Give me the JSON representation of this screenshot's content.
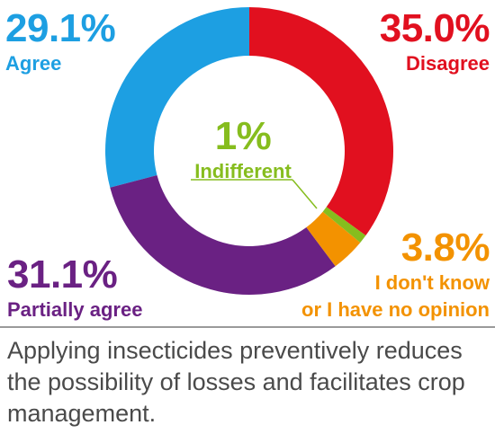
{
  "chart_data": {
    "type": "donut",
    "categories": [
      "Disagree",
      "Indifferent",
      "I don't know\nor I have no opinion",
      "Partially agree",
      "Agree"
    ],
    "values": [
      35.0,
      1,
      3.8,
      31.1,
      29.1
    ],
    "value_labels": [
      "35.0%",
      "1%",
      "3.8%",
      "31.1%",
      "29.1%"
    ],
    "colors": [
      "#e1101f",
      "#86bd1e",
      "#f39200",
      "#6a2183",
      "#1d9fe2"
    ],
    "caption": "Applying insecticides preventively reduces the possibility of losses and facilitates crop management."
  }
}
